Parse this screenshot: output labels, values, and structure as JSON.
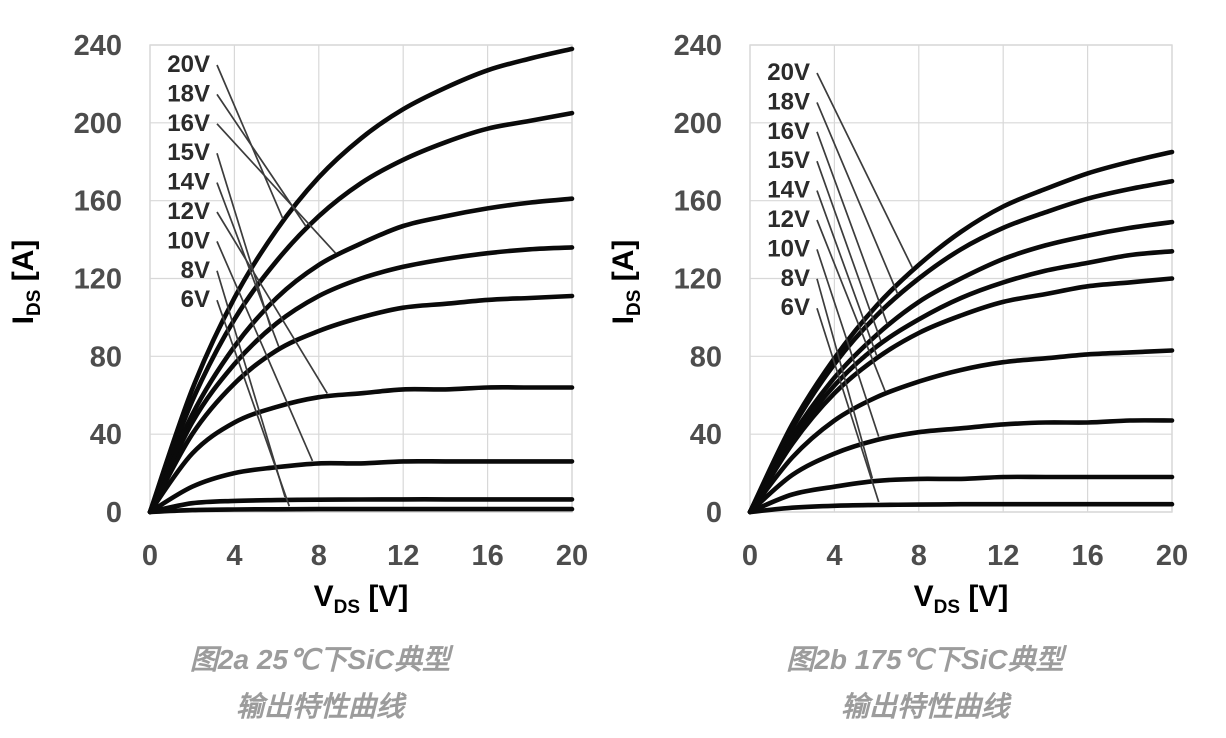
{
  "figure": {
    "background": "#ffffff",
    "colors": {
      "curve": "#0a0a0a",
      "grid": "#d8d8d8",
      "tick_label": "#4d4d4d",
      "axis_title": "#000000",
      "series_label": "#2b2b2b",
      "leader_line": "#3c3c3c",
      "caption": "#9c9c9c"
    }
  },
  "chart_data": [
    {
      "id": "fig2a",
      "type": "line",
      "title": "",
      "temperature": "25℃",
      "caption": [
        "图2a 25℃下SiC典型",
        "输出特性曲线"
      ],
      "xlabel": {
        "var": "V",
        "sub": "DS",
        "unit": "[V]"
      },
      "ylabel": {
        "var": "I",
        "sub": "DS",
        "unit": "[A]"
      },
      "xlim": [
        0,
        20
      ],
      "ylim": [
        0,
        240
      ],
      "x_ticks": [
        0,
        4,
        8,
        12,
        16,
        20
      ],
      "y_ticks": [
        0,
        40,
        80,
        120,
        160,
        200,
        240
      ],
      "grid": true,
      "legend_position": "inline-labels-upper-left",
      "x": [
        0,
        2,
        4,
        6,
        8,
        10,
        12,
        14,
        16,
        18,
        20
      ],
      "series": [
        {
          "name": "20V",
          "values": [
            0,
            63,
            110,
            145,
            172,
            192,
            207,
            218,
            227,
            233,
            238
          ],
          "leader_v": 6.3
        },
        {
          "name": "18V",
          "values": [
            0,
            57,
            99,
            129,
            152,
            169,
            181,
            190,
            197,
            201,
            205
          ],
          "leader_v": 7.4
        },
        {
          "name": "16V",
          "values": [
            0,
            50,
            85,
            110,
            127,
            138,
            147,
            152,
            156,
            159,
            161
          ],
          "leader_v": 8.8
        },
        {
          "name": "15V",
          "values": [
            0,
            46,
            76,
            97,
            111,
            120,
            126,
            130,
            133,
            135,
            136
          ],
          "leader_v": 5.7
        },
        {
          "name": "14V",
          "values": [
            0,
            40,
            66,
            83,
            93,
            100,
            105,
            107,
            109,
            110,
            111
          ],
          "leader_v": 6.1
        },
        {
          "name": "12V",
          "values": [
            0,
            30,
            46,
            54,
            59,
            61,
            63,
            63,
            64,
            64,
            64
          ],
          "leader_v": 8.4
        },
        {
          "name": "10V",
          "values": [
            0,
            13,
            20,
            23,
            25,
            25,
            26,
            26,
            26,
            26,
            26
          ],
          "leader_v": 7.7
        },
        {
          "name": "8V",
          "values": [
            0,
            4.5,
            5.7,
            6.1,
            6.3,
            6.4,
            6.5,
            6.5,
            6.5,
            6.5,
            6.5
          ],
          "leader_v": 6.4
        },
        {
          "name": "6V",
          "values": [
            0,
            1,
            1.3,
            1.4,
            1.5,
            1.5,
            1.5,
            1.5,
            1.5,
            1.5,
            1.5
          ],
          "leader_v": 6.6
        }
      ]
    },
    {
      "id": "fig2b",
      "type": "line",
      "title": "",
      "temperature": "175℃",
      "caption": [
        "图2b 175℃下SiC典型",
        "输出特性曲线"
      ],
      "xlabel": {
        "var": "V",
        "sub": "DS",
        "unit": "[V]"
      },
      "ylabel": {
        "var": "I",
        "sub": "DS",
        "unit": "[A]"
      },
      "xlim": [
        0,
        20
      ],
      "ylim": [
        0,
        240
      ],
      "x_ticks": [
        0,
        4,
        8,
        12,
        16,
        20
      ],
      "y_ticks": [
        0,
        40,
        80,
        120,
        160,
        200,
        240
      ],
      "grid": true,
      "legend_position": "inline-labels-upper-left",
      "x": [
        0,
        2,
        4,
        6,
        8,
        10,
        12,
        14,
        16,
        18,
        20
      ],
      "series": [
        {
          "name": "20V",
          "values": [
            0,
            45,
            79,
            106,
            127,
            144,
            157,
            166,
            174,
            180,
            185
          ],
          "leader_v": 7.7
        },
        {
          "name": "18V",
          "values": [
            0,
            43,
            76,
            101,
            120,
            135,
            146,
            154,
            161,
            166,
            170
          ],
          "leader_v": 7.0
        },
        {
          "name": "16V",
          "values": [
            0,
            39,
            69,
            91,
            108,
            120,
            130,
            137,
            142,
            146,
            149
          ],
          "leader_v": 6.5
        },
        {
          "name": "15V",
          "values": [
            0,
            37,
            65,
            85,
            99,
            110,
            118,
            124,
            128,
            132,
            134
          ],
          "leader_v": 6.2
        },
        {
          "name": "14V",
          "values": [
            0,
            35,
            61,
            79,
            92,
            101,
            108,
            112,
            116,
            118,
            120
          ],
          "leader_v": 6.0
        },
        {
          "name": "12V",
          "values": [
            0,
            28,
            47,
            59,
            67,
            73,
            77,
            79,
            81,
            82,
            83
          ],
          "leader_v": 6.4
        },
        {
          "name": "10V",
          "values": [
            0,
            19,
            30,
            37,
            41,
            43,
            45,
            46,
            46,
            47,
            47
          ],
          "leader_v": 6.1
        },
        {
          "name": "8V",
          "values": [
            0,
            9,
            13,
            16,
            17,
            17,
            18,
            18,
            18,
            18,
            18
          ],
          "leader_v": 5.8
        },
        {
          "name": "6V",
          "values": [
            0,
            2.2,
            3.2,
            3.6,
            3.8,
            4,
            4,
            4,
            4,
            4,
            4
          ],
          "leader_v": 6.1
        }
      ]
    }
  ]
}
